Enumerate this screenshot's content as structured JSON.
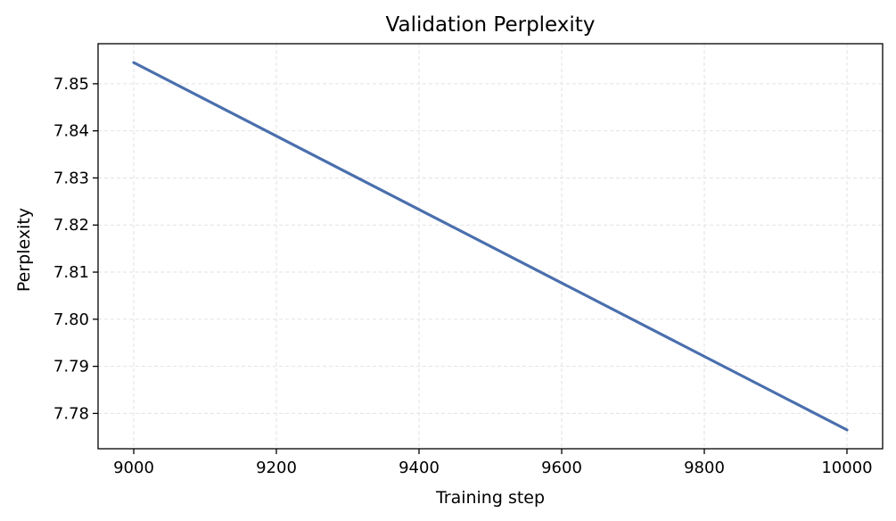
{
  "chart_data": {
    "type": "line",
    "title": "Validation Perplexity",
    "xlabel": "Training step",
    "ylabel": "Perplexity",
    "xlim": [
      8950,
      10050
    ],
    "ylim": [
      7.7725,
      7.8585
    ],
    "xticks": [
      9000,
      9200,
      9400,
      9600,
      9800,
      10000
    ],
    "yticks": [
      7.78,
      7.79,
      7.8,
      7.81,
      7.82,
      7.83,
      7.84,
      7.85
    ],
    "ytick_labels": [
      "7.78",
      "7.79",
      "7.80",
      "7.81",
      "7.82",
      "7.83",
      "7.84",
      "7.85"
    ],
    "grid": true,
    "series": [
      {
        "color": "#4a6fad",
        "x": [
          9000,
          10000
        ],
        "y": [
          7.8545,
          7.7765
        ]
      }
    ]
  }
}
